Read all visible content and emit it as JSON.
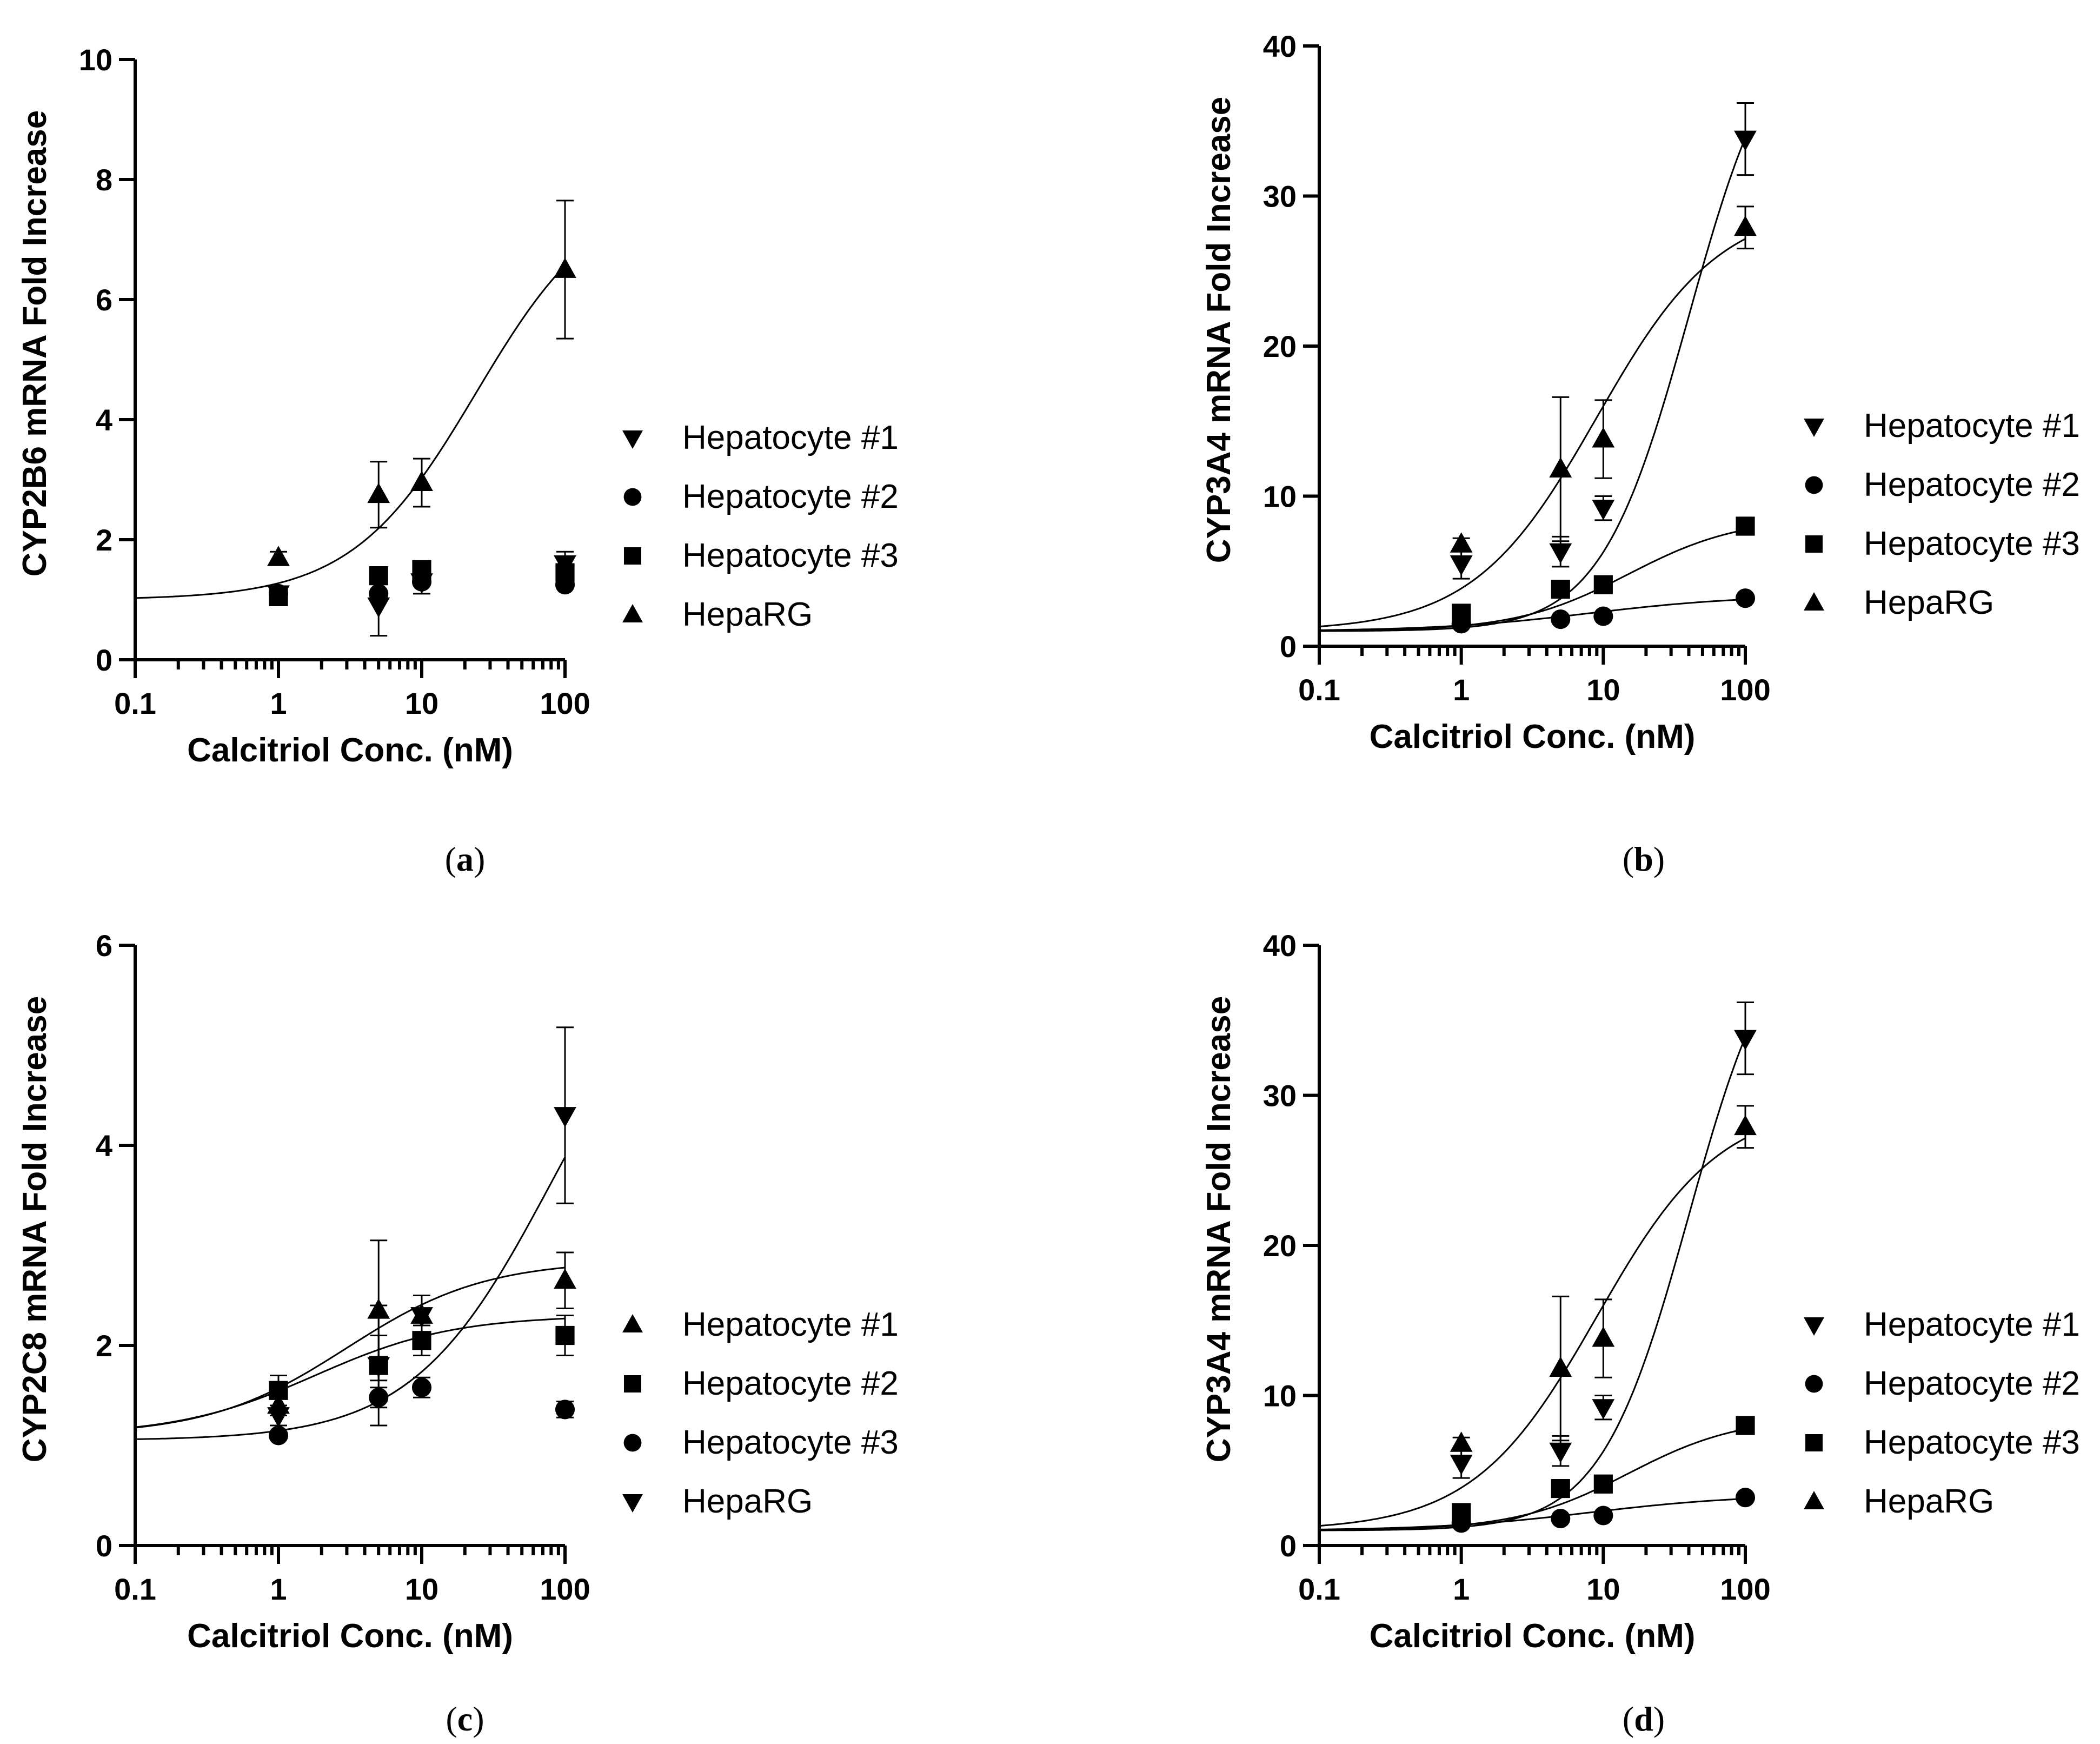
{
  "chart_data": [
    {
      "id": "a",
      "type": "scatter",
      "caption": "a",
      "xlabel": "Calcitriol Conc. (nM)",
      "ylabel": "CYP2B6 mRNA Fold Increase",
      "xscale": "log",
      "xlim": [
        0.1,
        100
      ],
      "ylim": [
        0,
        10
      ],
      "xticks": [
        0.1,
        1,
        10,
        100
      ],
      "xtick_labels": [
        "0.1",
        "1",
        "10",
        "100"
      ],
      "yticks": [
        0,
        2,
        4,
        6,
        8,
        10
      ],
      "ytick_labels": [
        "0",
        "2",
        "4",
        "6",
        "8",
        "10"
      ],
      "legend_position": "right",
      "series": [
        {
          "name": "Hepatocyte #1",
          "marker": "triangle-down",
          "x": [
            1,
            5,
            10,
            100
          ],
          "y": [
            1.1,
            0.9,
            1.3,
            1.6
          ],
          "err": [
            0.1,
            0.5,
            0.2,
            0.2
          ]
        },
        {
          "name": "Hepatocyte #2",
          "marker": "circle",
          "x": [
            1,
            5,
            10,
            100
          ],
          "y": [
            1.1,
            1.1,
            1.3,
            1.25
          ],
          "err": [
            0,
            0,
            0,
            0
          ]
        },
        {
          "name": "Hepatocyte #3",
          "marker": "square",
          "x": [
            1,
            5,
            10,
            100
          ],
          "y": [
            1.05,
            1.4,
            1.5,
            1.45
          ],
          "err": [
            0,
            0,
            0,
            0
          ]
        },
        {
          "name": "HepaRG",
          "marker": "triangle-up",
          "x": [
            1,
            5,
            10,
            100
          ],
          "y": [
            1.7,
            2.75,
            2.95,
            6.5
          ],
          "err": [
            0.1,
            0.55,
            0.4,
            1.15
          ],
          "fit": {
            "type": "sigmoid-log",
            "bottom": 1.0,
            "top": 7.9,
            "ec50": 24,
            "hill": 1.0
          }
        }
      ]
    },
    {
      "id": "b",
      "type": "scatter",
      "caption": "b",
      "xlabel": "Calcitriol Conc. (nM)",
      "ylabel": "CYP3A4 mRNA Fold Increase",
      "xscale": "log",
      "xlim": [
        0.1,
        100
      ],
      "ylim": [
        0,
        40
      ],
      "xticks": [
        0.1,
        1,
        10,
        100
      ],
      "xtick_labels": [
        "0.1",
        "1",
        "10",
        "100"
      ],
      "yticks": [
        0,
        10,
        20,
        30,
        40
      ],
      "ytick_labels": [
        "0",
        "10",
        "20",
        "30",
        "40"
      ],
      "legend_position": "right",
      "series": [
        {
          "name": "Hepatocyte #1",
          "marker": "triangle-down",
          "x": [
            1,
            5,
            10,
            100
          ],
          "y": [
            5.5,
            6.3,
            9.2,
            33.8
          ],
          "err": [
            1,
            1,
            0.8,
            2.4
          ],
          "fit": {
            "type": "sigmoid-log",
            "bottom": 1.0,
            "top": 43,
            "ec50": 40,
            "hill": 1.4
          }
        },
        {
          "name": "Hepatocyte #2",
          "marker": "circle",
          "x": [
            1,
            5,
            10,
            100
          ],
          "y": [
            1.5,
            1.8,
            2.0,
            3.2
          ],
          "err": [
            0,
            0,
            0,
            0
          ],
          "fit": {
            "type": "sigmoid-log",
            "bottom": 1.0,
            "top": 3.4,
            "ec50": 8,
            "hill": 0.8
          }
        },
        {
          "name": "Hepatocyte #3",
          "marker": "square",
          "x": [
            1,
            5,
            10,
            100
          ],
          "y": [
            2.2,
            3.8,
            4.1,
            8.0
          ],
          "err": [
            0,
            0,
            0,
            0
          ],
          "fit": {
            "type": "sigmoid-log",
            "bottom": 1.0,
            "top": 8.6,
            "ec50": 15,
            "hill": 1.1
          }
        },
        {
          "name": "HepaRG",
          "marker": "triangle-up",
          "x": [
            1,
            5,
            10,
            100
          ],
          "y": [
            6.8,
            11.8,
            13.8,
            27.9
          ],
          "err": [
            0.4,
            4.8,
            2.6,
            1.4
          ],
          "fit": {
            "type": "sigmoid-log",
            "bottom": 1.0,
            "top": 29.5,
            "ec50": 9,
            "hill": 1.0
          }
        }
      ]
    },
    {
      "id": "c",
      "type": "scatter",
      "caption": "c",
      "xlabel": "Calcitriol Conc. (nM)",
      "ylabel": "CYP2C8 mRNA Fold Increase",
      "xscale": "log",
      "xlim": [
        0.1,
        100
      ],
      "ylim": [
        0,
        6
      ],
      "xticks": [
        0.1,
        1,
        10,
        100
      ],
      "xtick_labels": [
        "0.1",
        "1",
        "10",
        "100"
      ],
      "yticks": [
        0,
        2,
        4,
        6
      ],
      "ytick_labels": [
        "0",
        "2",
        "4",
        "6"
      ],
      "legend_position": "right",
      "series": [
        {
          "name": "Hepatocyte #1",
          "marker": "triangle-up",
          "x": [
            1,
            5,
            10,
            100
          ],
          "y": [
            1.4,
            2.35,
            2.3,
            2.65
          ],
          "err": [
            0.1,
            0.7,
            0.2,
            0.28
          ],
          "fit": {
            "type": "sigmoid-log",
            "bottom": 1.1,
            "top": 2.85,
            "ec50": 3,
            "hill": 0.9
          }
        },
        {
          "name": "Hepatocyte #2",
          "marker": "square",
          "x": [
            1,
            5,
            10,
            100
          ],
          "y": [
            1.55,
            1.8,
            2.05,
            2.1
          ],
          "err": [
            0.15,
            0.6,
            0.15,
            0.2
          ],
          "fit": {
            "type": "sigmoid-log",
            "bottom": 1.1,
            "top": 2.3,
            "ec50": 1.8,
            "hill": 0.9
          }
        },
        {
          "name": "Hepatocyte #3",
          "marker": "circle",
          "x": [
            1,
            5,
            10,
            100
          ],
          "y": [
            1.1,
            1.48,
            1.58,
            1.36
          ],
          "err": [
            0,
            0.1,
            0.1,
            0.08
          ]
        },
        {
          "name": "HepaRG",
          "marker": "triangle-down",
          "x": [
            1,
            5,
            10,
            100
          ],
          "y": [
            1.3,
            1.8,
            2.3,
            4.3
          ],
          "err": [
            0.1,
            0.3,
            0.2,
            0.88
          ],
          "fit": {
            "type": "sigmoid-log",
            "bottom": 1.05,
            "top": 6.2,
            "ec50": 80,
            "hill": 0.9
          }
        }
      ]
    },
    {
      "id": "d",
      "type": "scatter",
      "caption": "d",
      "xlabel": "Calcitriol Conc. (nM)",
      "ylabel": "CYP3A4 mRNA Fold Increase",
      "xscale": "log",
      "xlim": [
        0.1,
        100
      ],
      "ylim": [
        0,
        40
      ],
      "xticks": [
        0.1,
        1,
        10,
        100
      ],
      "xtick_labels": [
        "0.1",
        "1",
        "10",
        "100"
      ],
      "yticks": [
        0,
        10,
        20,
        30,
        40
      ],
      "ytick_labels": [
        "0",
        "10",
        "20",
        "30",
        "40"
      ],
      "legend_position": "right",
      "series": [
        {
          "name": "Hepatocyte #1",
          "marker": "triangle-down",
          "x": [
            1,
            5,
            10,
            100
          ],
          "y": [
            5.5,
            6.3,
            9.2,
            33.8
          ],
          "err": [
            1,
            1,
            0.8,
            2.4
          ],
          "fit": {
            "type": "sigmoid-log",
            "bottom": 1.0,
            "top": 43,
            "ec50": 40,
            "hill": 1.4
          }
        },
        {
          "name": "Hepatocyte #2",
          "marker": "circle",
          "x": [
            1,
            5,
            10,
            100
          ],
          "y": [
            1.5,
            1.8,
            2.0,
            3.2
          ],
          "err": [
            0,
            0,
            0,
            0
          ],
          "fit": {
            "type": "sigmoid-log",
            "bottom": 1.0,
            "top": 3.4,
            "ec50": 8,
            "hill": 0.8
          }
        },
        {
          "name": "Hepatocyte #3",
          "marker": "square",
          "x": [
            1,
            5,
            10,
            100
          ],
          "y": [
            2.2,
            3.8,
            4.1,
            8.0
          ],
          "err": [
            0,
            0,
            0,
            0
          ],
          "fit": {
            "type": "sigmoid-log",
            "bottom": 1.0,
            "top": 8.6,
            "ec50": 15,
            "hill": 1.1
          }
        },
        {
          "name": "HepaRG",
          "marker": "triangle-up",
          "x": [
            1,
            5,
            10,
            100
          ],
          "y": [
            6.8,
            11.8,
            13.8,
            27.9
          ],
          "err": [
            0.4,
            4.8,
            2.6,
            1.4
          ],
          "fit": {
            "type": "sigmoid-log",
            "bottom": 1.0,
            "top": 29.5,
            "ec50": 9,
            "hill": 1.0
          }
        }
      ]
    }
  ]
}
